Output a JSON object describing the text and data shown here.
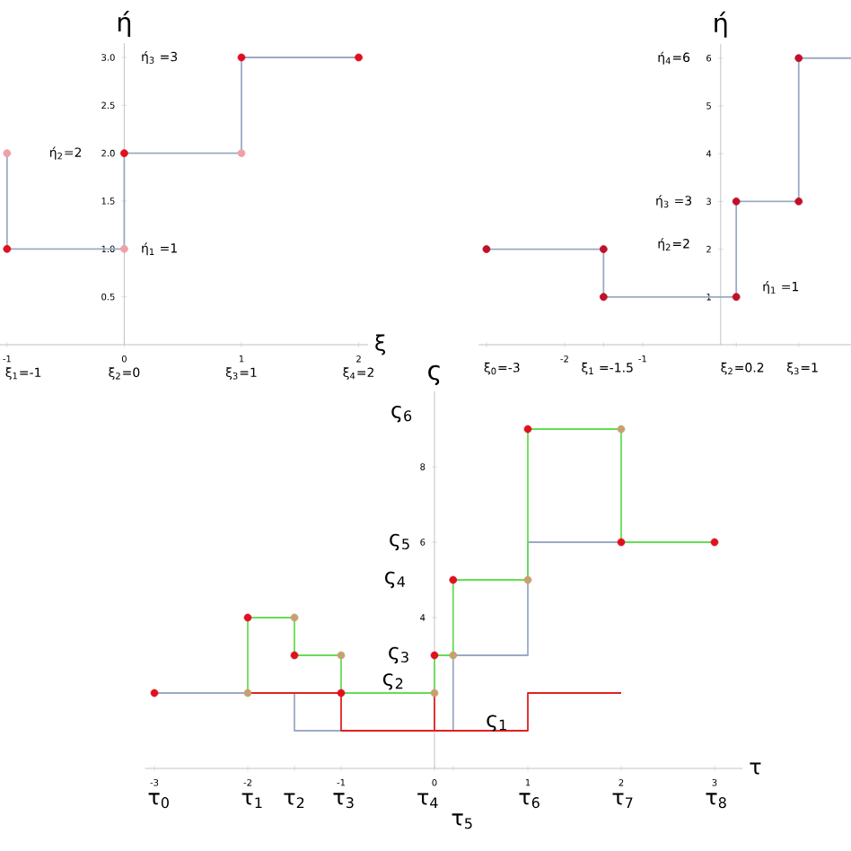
{
  "chart_data": [
    {
      "type": "line",
      "xlabel": "ξ",
      "ylabel": "ή",
      "xlim": [
        -1.06,
        2.08
      ],
      "ylim": [
        0,
        3.15
      ],
      "xticks": [
        -1,
        0,
        1,
        2
      ],
      "yticks": [
        {
          "value": 0.5,
          "label": "0.5"
        },
        {
          "value": 1,
          "label": "1.0"
        },
        {
          "value": 1.5,
          "label": "1.5"
        },
        {
          "value": 2,
          "label": "2.0"
        },
        {
          "value": 2.5,
          "label": "2.5"
        },
        {
          "value": 3,
          "label": "3.0"
        }
      ],
      "series": [
        {
          "color": "#9aaac4",
          "x": [
            -1,
            -1,
            0,
            0,
            1,
            1,
            2
          ],
          "values": [
            2,
            1,
            1,
            2,
            2,
            3,
            3
          ]
        },
        {
          "type": "scatter",
          "color": "#e0101e",
          "x": [
            -1,
            0,
            1,
            2
          ],
          "values": [
            1,
            2,
            3,
            3
          ]
        },
        {
          "type": "scatter",
          "color": "#f0a0a8",
          "x": [
            -1,
            0,
            1
          ],
          "values": [
            2,
            1,
            2
          ]
        }
      ],
      "annotations": [
        "ή$_{3}$ =3",
        "ή$_{2}$=2",
        "ή$_{1}$ =1",
        "ξ$_{1}$=-1",
        "ξ$_{2}$=0",
        "ξ$_{3}$=1",
        "ξ$_{4}$=2"
      ]
    },
    {
      "type": "line",
      "ylabel": "ή",
      "xlim": [
        -3.1,
        1.67
      ],
      "ylim": [
        0,
        6.3
      ],
      "xticks": [
        {
          "value": -3,
          "label": null
        },
        -2,
        {
          "value": -1.5,
          "label": null
        },
        -1,
        {
          "value": 0.2,
          "label": null
        },
        {
          "value": 1,
          "label": null
        }
      ],
      "yticks": [
        1,
        2,
        3,
        4,
        5,
        6
      ],
      "series": [
        {
          "color": "#9aaac4",
          "x": [
            -3,
            -1.5,
            -1.5,
            0.2,
            0.2,
            1,
            1,
            1.67
          ],
          "values": [
            2,
            2,
            1,
            1,
            3,
            3,
            6,
            6
          ]
        },
        {
          "type": "scatter",
          "color": "#c0102a",
          "x": [
            -3,
            -1.5,
            -1.5,
            0.2,
            0.2,
            1,
            1
          ],
          "values": [
            2,
            2,
            1,
            1,
            3,
            3,
            6
          ]
        }
      ],
      "annotations": [
        "ή$_{4}$=6",
        "ή$_{3}$ =3",
        "ή$_{2}$=2",
        "ή$_{1}$ =1",
        "ξ$_{0}$=-3",
        "ξ$_{1}$ =-1.5",
        "ξ$_{2}$=0.2",
        "ξ$_{3}$=1"
      ]
    },
    {
      "type": "line",
      "xlabel": "τ",
      "ylabel": "ς",
      "xlim": [
        -3.1,
        3.3
      ],
      "ylim": [
        0,
        10
      ],
      "xticks": [
        -3,
        -2,
        {
          "value": -1.5,
          "label": null
        },
        -1,
        0,
        {
          "value": 0.2,
          "label": null
        },
        1,
        2,
        3
      ],
      "yticks": [
        {
          "value": 2,
          "label": null
        },
        4,
        6,
        8
      ],
      "series": [
        {
          "color": "#9aaac4",
          "x": [
            -3,
            -1.5,
            -1.5,
            0.2,
            0.2,
            1,
            1,
            2
          ],
          "values": [
            2,
            2,
            1,
            1,
            3,
            3,
            6,
            6
          ]
        },
        {
          "color": "#e02020",
          "x": [
            -2,
            -1,
            -1,
            1,
            1,
            2
          ],
          "values": [
            2,
            2,
            1,
            1,
            2,
            2
          ]
        },
        {
          "color": "#e02020",
          "x": [
            0,
            0
          ],
          "values": [
            1,
            2
          ]
        },
        {
          "color": "#66dd55",
          "x": [
            -2,
            -2,
            -1.5,
            -1.5,
            -1,
            -1,
            0,
            0,
            0.2,
            0.2,
            1,
            1,
            2,
            2,
            3
          ],
          "values": [
            2,
            4,
            4,
            3,
            3,
            2,
            2,
            3,
            3,
            5,
            5,
            9,
            9,
            6,
            6
          ]
        },
        {
          "type": "scatter",
          "color": "#e0101e",
          "x": [
            -3,
            -2,
            -1.5,
            -1,
            0,
            0.2,
            1,
            2,
            3
          ],
          "values": [
            2,
            4,
            3,
            2,
            3,
            5,
            9,
            6,
            6
          ]
        },
        {
          "type": "scatter",
          "color": "#c8a070",
          "x": [
            -2,
            -1.5,
            -1,
            0,
            0.2,
            1,
            2
          ],
          "values": [
            2,
            4,
            3,
            2,
            3,
            5,
            9
          ]
        }
      ],
      "annotations": [
        "ς$_{6}$",
        "ς$_{5}$",
        "ς$_{4}$",
        "ς$_{3}$",
        "ς$_{2}$",
        "ς$_{1}$",
        "τ$_{0}$",
        "τ$_{1}$",
        "τ$_{2}$",
        "τ$_{3}$",
        "τ$_{4}$",
        "τ$_{5}$",
        "τ$_{6}$",
        "τ$_{7}$",
        "τ$_{8}$"
      ]
    }
  ]
}
